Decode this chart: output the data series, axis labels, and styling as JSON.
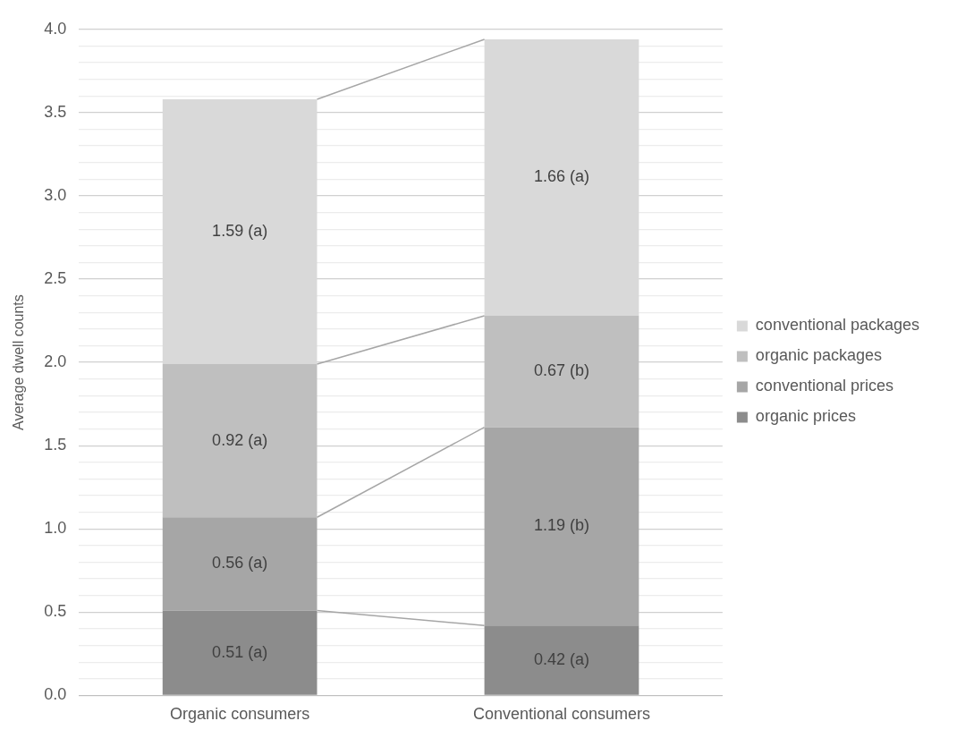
{
  "chart_data": {
    "type": "bar",
    "stacked": true,
    "ylabel": "Average dwell counts",
    "categories": [
      "Organic consumers",
      "Conventional consumers"
    ],
    "series": [
      {
        "name": "organic prices",
        "color": "#8c8c8c",
        "values": [
          0.51,
          0.42
        ],
        "value_labels": [
          "0.51 (a)",
          "0.42 (a)"
        ]
      },
      {
        "name": "conventional prices",
        "color": "#a6a6a6",
        "values": [
          0.56,
          1.19
        ],
        "value_labels": [
          "0.56 (a)",
          "1.19 (b)"
        ]
      },
      {
        "name": "organic packages",
        "color": "#bfbfbf",
        "values": [
          0.92,
          0.67
        ],
        "value_labels": [
          "0.92 (a)",
          "0.67 (b)"
        ]
      },
      {
        "name": "conventional packages",
        "color": "#d9d9d9",
        "values": [
          1.59,
          1.66
        ],
        "value_labels": [
          "1.59 (a)",
          "1.66 (a)"
        ]
      }
    ],
    "ylim": [
      0,
      4
    ],
    "yticks": [
      {
        "value": 0,
        "label": "0.0"
      },
      {
        "value": 0.1,
        "label": null
      },
      {
        "value": 0.2,
        "label": null
      },
      {
        "value": 0.3,
        "label": null
      },
      {
        "value": 0.4,
        "label": null
      },
      {
        "value": 0.5,
        "label": "0.5"
      },
      {
        "value": 0.6,
        "label": null
      },
      {
        "value": 0.7,
        "label": null
      },
      {
        "value": 0.8,
        "label": null
      },
      {
        "value": 0.9,
        "label": null
      },
      {
        "value": 1,
        "label": "1.0"
      },
      {
        "value": 1.1,
        "label": null
      },
      {
        "value": 1.2,
        "label": null
      },
      {
        "value": 1.3,
        "label": null
      },
      {
        "value": 1.4,
        "label": null
      },
      {
        "value": 1.5,
        "label": "1.5"
      },
      {
        "value": 1.6,
        "label": null
      },
      {
        "value": 1.7,
        "label": null
      },
      {
        "value": 1.8,
        "label": null
      },
      {
        "value": 1.9,
        "label": null
      },
      {
        "value": 2,
        "label": "2.0"
      },
      {
        "value": 2.1,
        "label": null
      },
      {
        "value": 2.2,
        "label": null
      },
      {
        "value": 2.3,
        "label": null
      },
      {
        "value": 2.4,
        "label": null
      },
      {
        "value": 2.5,
        "label": "2.5"
      },
      {
        "value": 2.6,
        "label": null
      },
      {
        "value": 2.7,
        "label": null
      },
      {
        "value": 2.8,
        "label": null
      },
      {
        "value": 2.9,
        "label": null
      },
      {
        "value": 3,
        "label": "3.0"
      },
      {
        "value": 3.1,
        "label": null
      },
      {
        "value": 3.2,
        "label": null
      },
      {
        "value": 3.3,
        "label": null
      },
      {
        "value": 3.4,
        "label": null
      },
      {
        "value": 3.5,
        "label": "3.5"
      },
      {
        "value": 3.6,
        "label": null
      },
      {
        "value": 3.7,
        "label": null
      },
      {
        "value": 3.8,
        "label": null
      },
      {
        "value": 3.9,
        "label": null
      },
      {
        "value": 4,
        "label": "4.0"
      }
    ],
    "grid": "y",
    "legend": "right"
  }
}
